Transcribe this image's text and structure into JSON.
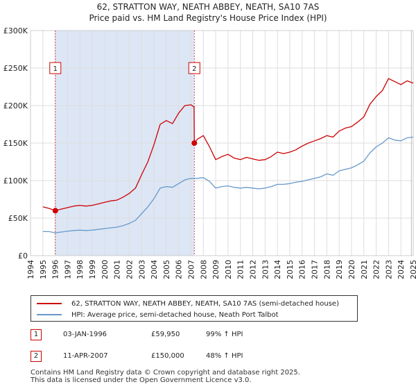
{
  "header": {
    "title_line1": "62, STRATTON WAY, NEATH ABBEY, NEATH, SA10 7AS",
    "title_line2": "Price paid vs. HM Land Registry's House Price Index (HPI)"
  },
  "chart_data": {
    "type": "line",
    "title": "62, STRATTON WAY, NEATH ABBEY, NEATH, SA10 7AS — Price paid vs. HM Land Registry's House Price Index (HPI)",
    "xlim": [
      1994,
      2025
    ],
    "ylim": [
      0,
      300000
    ],
    "yticks": [
      0,
      50000,
      100000,
      150000,
      200000,
      250000,
      300000
    ],
    "ytick_labels": [
      "£0",
      "£50K",
      "£100K",
      "£150K",
      "£200K",
      "£250K",
      "£300K"
    ],
    "xticks": [
      "1994",
      "1995",
      "1996",
      "1997",
      "1998",
      "1999",
      "2000",
      "2001",
      "2002",
      "2003",
      "2004",
      "2005",
      "2006",
      "2007",
      "2008",
      "2009",
      "2010",
      "2011",
      "2012",
      "2013",
      "2014",
      "2015",
      "2016",
      "2017",
      "2018",
      "2019",
      "2020",
      "2021",
      "2022",
      "2023",
      "2024",
      "2025"
    ],
    "grid": true,
    "colors": {
      "property": "#cc0000",
      "hpi": "#6699cc",
      "shade": "#dde6f5",
      "marker_border": "#cc0000"
    },
    "series": [
      {
        "name": "62, STRATTON WAY, NEATH ABBEY, NEATH, SA10 7AS (semi-detached house)",
        "x": [
          1995.0,
          1995.5,
          1996.01,
          1996.5,
          1997.0,
          1997.5,
          1998.0,
          1998.5,
          1999.0,
          1999.5,
          2000.0,
          2000.5,
          2001.0,
          2001.5,
          2002.0,
          2002.5,
          2003.0,
          2003.5,
          2004.0,
          2004.5,
          2005.0,
          2005.5,
          2006.0,
          2006.5,
          2007.0,
          2007.25,
          2007.27,
          2007.5,
          2008.0,
          2008.5,
          2009.0,
          2009.5,
          2010.0,
          2010.5,
          2011.0,
          2011.5,
          2012.0,
          2012.5,
          2013.0,
          2013.5,
          2014.0,
          2014.5,
          2015.0,
          2015.5,
          2016.0,
          2016.5,
          2017.0,
          2017.5,
          2018.0,
          2018.5,
          2019.0,
          2019.5,
          2020.0,
          2020.5,
          2021.0,
          2021.5,
          2022.0,
          2022.5,
          2023.0,
          2023.5,
          2024.0,
          2024.5,
          2025.0
        ],
        "values": [
          65000,
          63000,
          59950,
          62000,
          64000,
          66000,
          67000,
          66000,
          67000,
          69000,
          71000,
          73000,
          74000,
          78000,
          83000,
          90000,
          108000,
          125000,
          148000,
          175000,
          180000,
          176000,
          190000,
          200000,
          201000,
          198000,
          150000,
          155000,
          160000,
          145000,
          128000,
          132000,
          135000,
          130000,
          128000,
          131000,
          129000,
          127000,
          128000,
          132000,
          138000,
          136000,
          138000,
          141000,
          146000,
          150000,
          153000,
          156000,
          160000,
          158000,
          166000,
          170000,
          172000,
          178000,
          185000,
          202000,
          212000,
          220000,
          236000,
          232000,
          228000,
          233000,
          230000
        ]
      },
      {
        "name": "HPI: Average price, semi-detached house, Neath Port Talbot",
        "x": [
          1995.0,
          1995.5,
          1996.0,
          1996.5,
          1997.0,
          1997.5,
          1998.0,
          1998.5,
          1999.0,
          1999.5,
          2000.0,
          2000.5,
          2001.0,
          2001.5,
          2002.0,
          2002.5,
          2003.0,
          2003.5,
          2004.0,
          2004.5,
          2005.0,
          2005.5,
          2006.0,
          2006.5,
          2007.0,
          2007.5,
          2008.0,
          2008.5,
          2009.0,
          2009.5,
          2010.0,
          2010.5,
          2011.0,
          2011.5,
          2012.0,
          2012.5,
          2013.0,
          2013.5,
          2014.0,
          2014.5,
          2015.0,
          2015.5,
          2016.0,
          2016.5,
          2017.0,
          2017.5,
          2018.0,
          2018.5,
          2019.0,
          2019.5,
          2020.0,
          2020.5,
          2021.0,
          2021.5,
          2022.0,
          2022.5,
          2023.0,
          2023.5,
          2024.0,
          2024.5,
          2025.0
        ],
        "values": [
          32000,
          32000,
          30500,
          31500,
          32500,
          33500,
          34000,
          33500,
          34000,
          35000,
          36000,
          37000,
          38000,
          40000,
          43000,
          47000,
          56000,
          65000,
          76000,
          90000,
          92000,
          91000,
          96000,
          101000,
          103000,
          103000,
          104000,
          99000,
          90000,
          92000,
          93000,
          91000,
          90000,
          91000,
          90000,
          89000,
          90000,
          92000,
          95000,
          95000,
          96000,
          98000,
          99000,
          101000,
          103000,
          105000,
          109000,
          107000,
          113000,
          115000,
          117000,
          121000,
          126000,
          137000,
          145000,
          150000,
          157000,
          154000,
          153000,
          157000,
          158000
        ]
      }
    ],
    "sales": [
      {
        "id": "1",
        "x": 1996.01,
        "value": 59950
      },
      {
        "id": "2",
        "x": 2007.27,
        "value": 150000
      }
    ],
    "annotation_y": 250000
  },
  "legend": {
    "property_label": "62, STRATTON WAY, NEATH ABBEY, NEATH, SA10 7AS (semi-detached house)",
    "hpi_label": "HPI: Average price, semi-detached house, Neath Port Talbot"
  },
  "sales_table": [
    {
      "id": "1",
      "date": "03-JAN-1996",
      "price": "£59,950",
      "hpi": "99% ↑ HPI"
    },
    {
      "id": "2",
      "date": "11-APR-2007",
      "price": "£150,000",
      "hpi": "48% ↑ HPI"
    }
  ],
  "footer": {
    "line1": "Contains HM Land Registry data © Crown copyright and database right 2025.",
    "line2": "This data is licensed under the Open Government Licence v3.0."
  }
}
